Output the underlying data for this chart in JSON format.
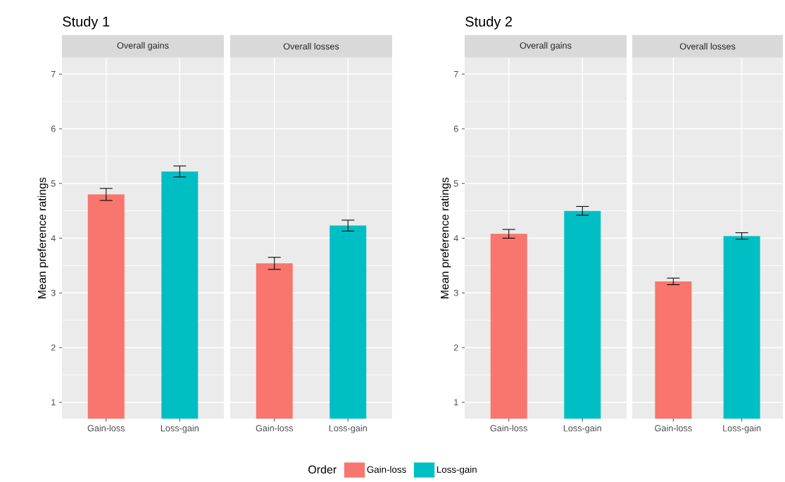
{
  "chart_data": [
    {
      "type": "bar",
      "title": "Study 1",
      "subtitle": "Overall gains",
      "ylabel": "Mean preference ratings",
      "categories": [
        "Gain-loss",
        "Loss-gain"
      ],
      "series": [
        {
          "name": "Gain-loss",
          "color": "#f8766d",
          "values": [
            4.8,
            null
          ],
          "errors": [
            0.11,
            null
          ]
        },
        {
          "name": "Loss-gain",
          "color": "#00bfc4",
          "values": [
            null,
            5.22
          ],
          "errors": [
            null,
            0.1
          ]
        }
      ],
      "ylim": [
        0.7,
        7.3
      ],
      "yticks": [
        1,
        2,
        3,
        4,
        5,
        6,
        7
      ],
      "grid": true,
      "legend": "bottom",
      "legend_title": "Order"
    },
    {
      "type": "bar",
      "subtitle": "Overall losses",
      "categories": [
        "Gain-loss",
        "Loss-gain"
      ],
      "series": [
        {
          "color": "#f8766d",
          "values": [
            3.54,
            null
          ],
          "errors": [
            0.11,
            null
          ]
        },
        {
          "color": "#00bfc4",
          "values": [
            null,
            4.23
          ],
          "errors": [
            null,
            0.1
          ]
        }
      ],
      "ylim": [
        0.7,
        7.3
      ],
      "yticks": [
        1,
        2,
        3,
        4,
        5,
        6,
        7
      ],
      "grid": true,
      "tick_labels": "x"
    },
    {
      "type": "bar",
      "title": "Study 2",
      "subtitle": "Overall gains",
      "ylabel": "Mean preference ratings",
      "categories": [
        "Gain-loss",
        "Loss-gain"
      ],
      "series": [
        {
          "color": "#f8766d",
          "values": [
            4.08,
            null
          ],
          "errors": [
            0.08,
            null
          ]
        },
        {
          "color": "#00bfc4",
          "values": [
            null,
            4.5
          ],
          "errors": [
            null,
            0.08
          ]
        }
      ],
      "ylim": [
        0.7,
        7.3
      ],
      "yticks": [
        1,
        2,
        3,
        4,
        5,
        6,
        7
      ],
      "grid": true
    },
    {
      "type": "bar",
      "subtitle": "Overall losses",
      "categories": [
        "Gain-loss",
        "Loss-gain"
      ],
      "series": [
        {
          "color": "#f8766d",
          "values": [
            3.21,
            null
          ],
          "errors": [
            0.06,
            null
          ]
        },
        {
          "color": "#00bfc4",
          "values": [
            null,
            4.04
          ],
          "errors": [
            null,
            0.06
          ]
        }
      ],
      "ylim": [
        0.7,
        7.3
      ],
      "yticks": [
        1,
        2,
        3,
        4,
        5,
        6,
        7
      ],
      "grid": true,
      "tick_labels": "x"
    }
  ]
}
